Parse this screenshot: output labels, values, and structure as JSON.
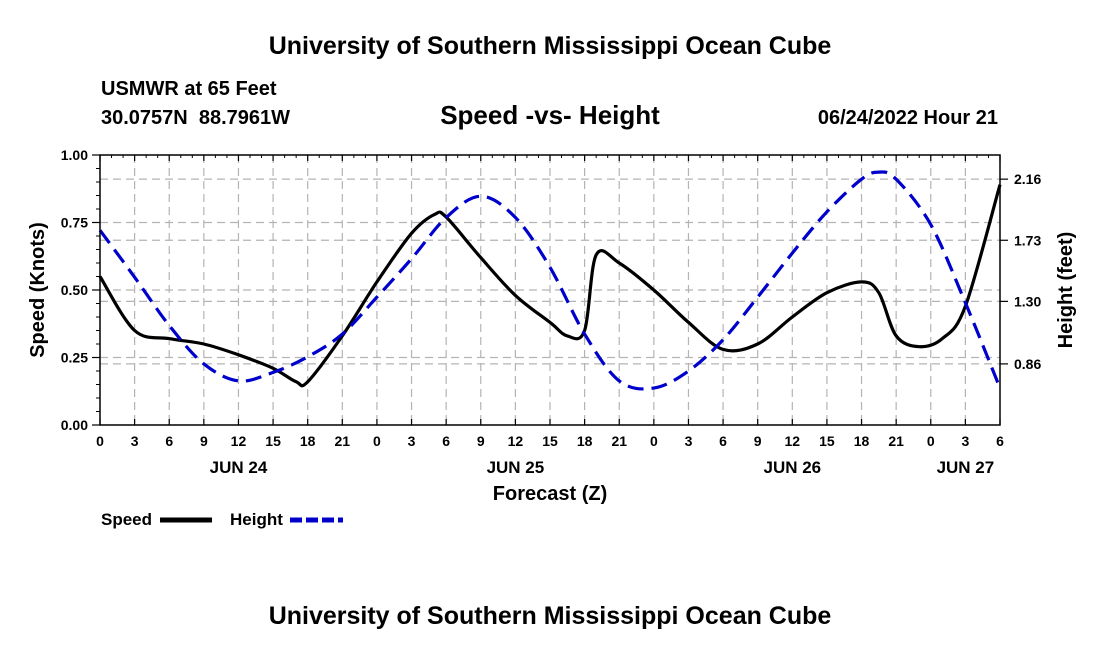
{
  "chart_data": {
    "type": "line",
    "title": "University of Southern Mississippi Ocean Cube",
    "footer_title": "University of Southern Mississippi Ocean Cube",
    "station": "USMWR at 65 Feet",
    "coordinates": "30.0757N  88.7961W",
    "subtitle": "Speed -vs- Height",
    "timestamp": "06/24/2022 Hour 21",
    "xlabel": "Forecast (Z)",
    "ylabel": "Speed (Knots)",
    "y2label": "Height (feet)",
    "ylim": [
      0,
      1
    ],
    "y2lim": [
      0.43,
      2.33
    ],
    "xlim": [
      0,
      78
    ],
    "x_tick_labels": [
      "0",
      "3",
      "6",
      "9",
      "12",
      "15",
      "18",
      "21",
      "0",
      "3",
      "6",
      "9",
      "12",
      "15",
      "18",
      "21",
      "0",
      "3",
      "6",
      "9",
      "12",
      "15",
      "18",
      "21",
      "0",
      "3",
      "6"
    ],
    "y_ticks": [
      {
        "value": 0,
        "label": "0.00"
      },
      {
        "value": 0.25,
        "label": "0.25"
      },
      {
        "value": 0.5,
        "label": "0.50"
      },
      {
        "value": 0.75,
        "label": "0.75"
      },
      {
        "value": 1,
        "label": "1.00"
      }
    ],
    "y2_ticks": [
      {
        "value": 0.86,
        "label": "0.86"
      },
      {
        "value": 1.3,
        "label": "1.30"
      },
      {
        "value": 1.73,
        "label": "1.73"
      },
      {
        "value": 2.16,
        "label": "2.16"
      }
    ],
    "date_labels": [
      {
        "label": "JUN 24",
        "hour": 12
      },
      {
        "label": "JUN 25",
        "hour": 36
      },
      {
        "label": "JUN 26",
        "hour": 60
      },
      {
        "label": "JUN 27",
        "hour": 75
      }
    ],
    "legend": [
      {
        "name": "Speed",
        "color": "#000000",
        "style": "solid"
      },
      {
        "name": "Height",
        "color": "#0000cc",
        "style": "dashed"
      }
    ],
    "series": [
      {
        "name": "Speed",
        "axis": "left",
        "color": "#000000",
        "x": [
          0,
          3,
          6,
          9,
          12,
          15,
          17,
          18,
          21,
          24,
          27,
          29,
          30,
          33,
          36,
          39,
          40.5,
          42,
          43,
          45,
          48,
          51,
          54,
          57,
          60,
          63,
          66,
          67.5,
          69,
          71,
          73,
          75,
          78
        ],
        "values": [
          0.55,
          0.35,
          0.32,
          0.3,
          0.26,
          0.21,
          0.16,
          0.16,
          0.33,
          0.53,
          0.71,
          0.78,
          0.77,
          0.62,
          0.48,
          0.38,
          0.33,
          0.35,
          0.63,
          0.6,
          0.5,
          0.38,
          0.28,
          0.3,
          0.4,
          0.49,
          0.53,
          0.49,
          0.33,
          0.29,
          0.32,
          0.44,
          0.89
        ]
      },
      {
        "name": "Height",
        "axis": "right",
        "color": "#0000cc",
        "x": [
          0,
          3,
          6,
          9,
          12,
          15,
          18,
          21,
          24,
          27,
          30,
          33,
          36,
          39,
          42,
          45,
          48,
          51,
          54,
          57,
          60,
          63,
          66,
          67.5,
          69,
          72,
          75,
          78
        ],
        "values": [
          1.8,
          1.47,
          1.13,
          0.86,
          0.74,
          0.8,
          0.91,
          1.07,
          1.33,
          1.6,
          1.89,
          2.04,
          1.89,
          1.54,
          1.07,
          0.74,
          0.69,
          0.81,
          1.03,
          1.33,
          1.64,
          1.93,
          2.16,
          2.21,
          2.16,
          1.84,
          1.29,
          0.69
        ]
      }
    ]
  }
}
